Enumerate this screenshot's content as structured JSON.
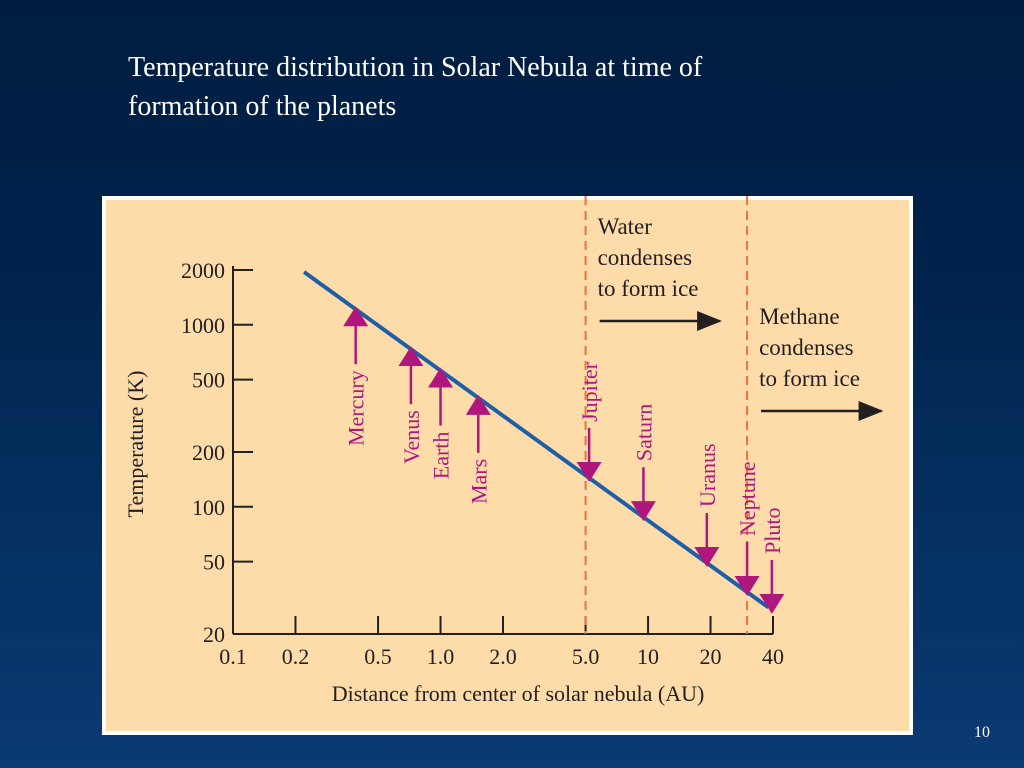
{
  "slide": {
    "title_line1": "Temperature distribution in Solar Nebula at time of",
    "title_line2": "formation of the planets",
    "page_number": "10"
  },
  "colors": {
    "background": "#00234d",
    "panel": "#fddcaa",
    "line": "#1f5fa8",
    "planet": "#b0177d",
    "dashed": "#e8743b",
    "text": "#231f20"
  },
  "chart_data": {
    "type": "line",
    "x_scale": "log",
    "y_scale": "log",
    "xlabel": "Distance from center of solar nebula (AU)",
    "ylabel": "Temperature (K)",
    "xlim": [
      0.1,
      40
    ],
    "ylim": [
      20,
      2000
    ],
    "x_ticks": [
      {
        "value": 0.1,
        "label": "0.1"
      },
      {
        "value": 0.2,
        "label": "0.2"
      },
      {
        "value": 0.5,
        "label": "0.5"
      },
      {
        "value": 1.0,
        "label": "1.0"
      },
      {
        "value": 2.0,
        "label": "2.0"
      },
      {
        "value": 5.0,
        "label": "5.0"
      },
      {
        "value": 10,
        "label": "10"
      },
      {
        "value": 20,
        "label": "20"
      },
      {
        "value": 40,
        "label": "40"
      }
    ],
    "y_ticks": [
      {
        "value": 2000,
        "label": "2000"
      },
      {
        "value": 1000,
        "label": "1000"
      },
      {
        "value": 500,
        "label": "500"
      },
      {
        "value": 200,
        "label": "200"
      },
      {
        "value": 100,
        "label": "100"
      },
      {
        "value": 50,
        "label": "50"
      },
      {
        "value": 20,
        "label": "20"
      }
    ],
    "series": [
      {
        "x": [
          0.22,
          38
        ],
        "y": [
          1950,
          28
        ]
      }
    ],
    "planets": [
      {
        "name": "Mercury",
        "x": 0.39,
        "direction": "up",
        "label_side": "below"
      },
      {
        "name": "Venus",
        "x": 0.72,
        "direction": "up",
        "label_side": "below"
      },
      {
        "name": "Earth",
        "x": 1.0,
        "direction": "up",
        "label_side": "below"
      },
      {
        "name": "Mars",
        "x": 1.52,
        "direction": "up",
        "label_side": "below"
      },
      {
        "name": "Jupiter",
        "x": 5.2,
        "direction": "down",
        "label_side": "above"
      },
      {
        "name": "Saturn",
        "x": 9.5,
        "direction": "down",
        "label_side": "above"
      },
      {
        "name": "Uranus",
        "x": 19.2,
        "direction": "down",
        "label_side": "above"
      },
      {
        "name": "Neptune",
        "x": 30,
        "direction": "down",
        "label_side": "above"
      },
      {
        "name": "Pluto",
        "x": 39.5,
        "direction": "down",
        "label_side": "above"
      }
    ],
    "condensation_lines": [
      {
        "x": 5.0,
        "lines": [
          "Water",
          "condenses",
          "to form ice"
        ]
      },
      {
        "x": 30,
        "lines": [
          "Methane",
          "condenses",
          "to form ice"
        ]
      }
    ],
    "grid": false,
    "legend": "none"
  }
}
